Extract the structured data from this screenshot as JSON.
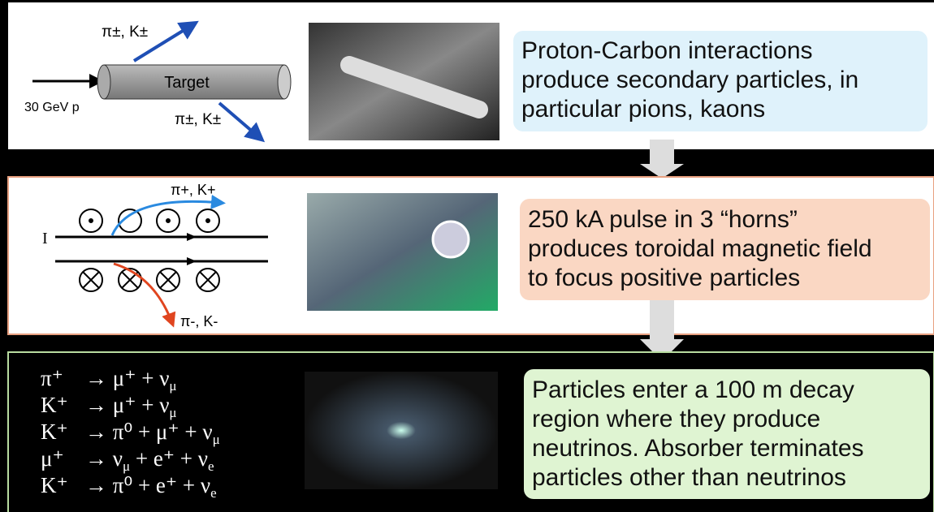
{
  "panel1": {
    "target_label": "Target",
    "beam_label": "30 GeV p",
    "upper_products": "π±, K±",
    "lower_products": "π±, K±",
    "text_lines": [
      "Proton-Carbon interactions",
      "produce secondary particles, in",
      "particular pions, kaons"
    ]
  },
  "panel2": {
    "current_label": "I",
    "positive_products": "π+, K+",
    "negative_products": "π-, K-",
    "text_lines": [
      "250 kA pulse in 3 “horns”",
      "produces toroidal magnetic field",
      "to focus positive particles"
    ]
  },
  "panel3": {
    "equations": [
      {
        "lhs": "π⁺",
        "rhs": [
          "→ μ⁺ + ν",
          "μ"
        ]
      },
      {
        "lhs": "K⁺",
        "rhs": [
          "→ μ⁺ + ν",
          "μ"
        ]
      },
      {
        "lhs": "K⁺",
        "rhs": [
          "→ π⁰ + μ⁺ + ν",
          "μ"
        ]
      },
      {
        "lhs": "μ⁺",
        "rhs": [
          "→ ν",
          "μ",
          " + e⁺ + ν",
          "e"
        ]
      },
      {
        "lhs": "K⁺",
        "rhs": [
          "→ π⁰ + e⁺ + ν",
          "e"
        ]
      }
    ],
    "text_lines": [
      "Particles enter a 100 m decay",
      "region where they produce",
      "neutrinos. Absorber terminates",
      "particles other than neutrinos"
    ]
  }
}
